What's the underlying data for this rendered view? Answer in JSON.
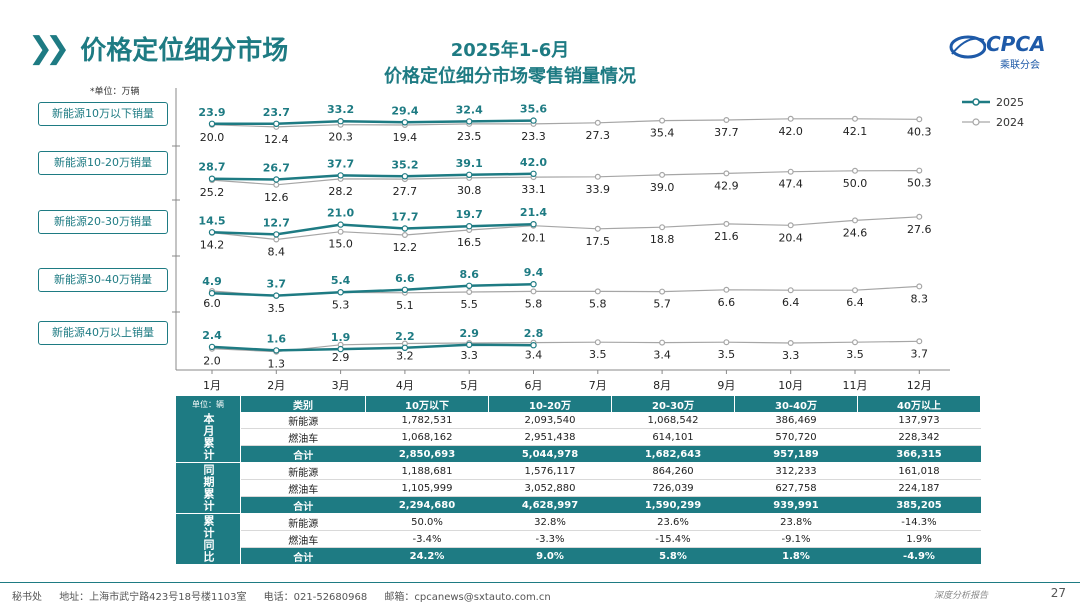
{
  "header": {
    "page_title": "价格定位细分市场",
    "chart_title_line1": "2025年1-6月",
    "chart_title_line2": "价格定位细分市场零售销量情况",
    "logo_text": "CPCA",
    "logo_sub": "乘联分会",
    "unit_label": "*单位：万辆"
  },
  "legend": {
    "series_2025": "2025",
    "series_2024": "2024"
  },
  "colors": {
    "accent": "#1e7b83",
    "series_2025": "#1e7b83",
    "series_2024": "#a6a6a6"
  },
  "chart_data": {
    "type": "line",
    "x": [
      "1月",
      "2月",
      "3月",
      "4月",
      "5月",
      "6月",
      "7月",
      "8月",
      "9月",
      "10月",
      "11月",
      "12月"
    ],
    "unit": "万辆",
    "panels": [
      {
        "label": "新能源10万以下销量",
        "series": [
          {
            "name": "2025",
            "values": [
              23.9,
              23.7,
              33.2,
              29.4,
              32.4,
              35.6
            ]
          },
          {
            "name": "2024",
            "values": [
              20.0,
              12.4,
              20.3,
              19.4,
              23.5,
              23.3,
              27.3,
              35.4,
              37.7,
              42.0,
              42.1,
              40.3
            ]
          }
        ]
      },
      {
        "label": "新能源10-20万销量",
        "series": [
          {
            "name": "2025",
            "values": [
              28.7,
              26.7,
              37.7,
              35.2,
              39.1,
              42.0
            ]
          },
          {
            "name": "2024",
            "values": [
              25.2,
              12.6,
              28.2,
              27.7,
              30.8,
              33.1,
              33.9,
              39.0,
              42.9,
              47.4,
              50.0,
              50.3
            ]
          }
        ]
      },
      {
        "label": "新能源20-30万销量",
        "series": [
          {
            "name": "2025",
            "values": [
              14.5,
              12.7,
              21.0,
              17.7,
              19.7,
              21.4
            ]
          },
          {
            "name": "2024",
            "values": [
              14.2,
              8.4,
              15.0,
              12.2,
              16.5,
              20.1,
              17.5,
              18.8,
              21.6,
              20.4,
              24.6,
              27.6
            ]
          }
        ]
      },
      {
        "label": "新能源30-40万销量",
        "series": [
          {
            "name": "2025",
            "values": [
              4.9,
              3.7,
              5.4,
              6.6,
              8.6,
              9.4
            ]
          },
          {
            "name": "2024",
            "values": [
              6.0,
              3.5,
              5.3,
              5.1,
              5.5,
              5.8,
              5.8,
              5.7,
              6.6,
              6.4,
              6.4,
              8.3
            ]
          }
        ]
      },
      {
        "label": "新能源40万以上销量",
        "series": [
          {
            "name": "2025",
            "values": [
              2.4,
              1.6,
              1.9,
              2.2,
              2.9,
              2.8
            ]
          },
          {
            "name": "2024",
            "values": [
              2.0,
              1.3,
              2.9,
              3.2,
              3.3,
              3.4,
              3.5,
              3.4,
              3.5,
              3.3,
              3.5,
              3.7
            ]
          }
        ]
      }
    ]
  },
  "table": {
    "unit_label": "单位：辆",
    "headers": [
      "类别",
      "10万以下",
      "10-20万",
      "20-30万",
      "30-40万",
      "40万以上"
    ],
    "groups": [
      {
        "name": "本月累计",
        "rows": [
          {
            "label": "新能源",
            "values": [
              "1,782,531",
              "2,093,540",
              "1,068,542",
              "386,469",
              "137,973"
            ]
          },
          {
            "label": "燃油车",
            "values": [
              "1,068,162",
              "2,951,438",
              "614,101",
              "570,720",
              "228,342"
            ]
          },
          {
            "label": "合计",
            "values": [
              "2,850,693",
              "5,044,978",
              "1,682,643",
              "957,189",
              "366,315"
            ]
          }
        ]
      },
      {
        "name": "同期累计",
        "rows": [
          {
            "label": "新能源",
            "values": [
              "1,188,681",
              "1,576,117",
              "864,260",
              "312,233",
              "161,018"
            ]
          },
          {
            "label": "燃油车",
            "values": [
              "1,105,999",
              "3,052,880",
              "726,039",
              "627,758",
              "224,187"
            ]
          },
          {
            "label": "合计",
            "values": [
              "2,294,680",
              "4,628,997",
              "1,590,299",
              "939,991",
              "385,205"
            ]
          }
        ]
      },
      {
        "name": "累计同比",
        "rows": [
          {
            "label": "新能源",
            "values": [
              "50.0%",
              "32.8%",
              "23.6%",
              "23.8%",
              "-14.3%"
            ]
          },
          {
            "label": "燃油车",
            "values": [
              "-3.4%",
              "-3.3%",
              "-15.4%",
              "-9.1%",
              "1.9%"
            ]
          },
          {
            "label": "合计",
            "values": [
              "24.2%",
              "9.0%",
              "5.8%",
              "1.8%",
              "-4.9%"
            ]
          }
        ]
      }
    ]
  },
  "footer": {
    "org": "秘书处",
    "address": "地址：上海市武宁路423号18号楼1103室",
    "phone": "电话：021-52680968",
    "email": "邮箱：cpcanews@sxtauto.com.cn",
    "slogan": "深度分析报告",
    "page_number": "27"
  }
}
